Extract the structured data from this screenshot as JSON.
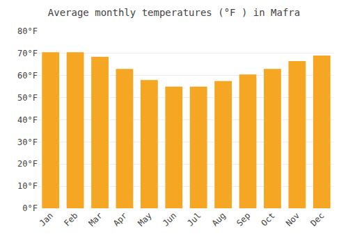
{
  "chart_data": {
    "type": "bar",
    "title": "Average monthly temperatures (°F ) in Mafra",
    "categories": [
      "Jan",
      "Feb",
      "Mar",
      "Apr",
      "May",
      "Jun",
      "Jul",
      "Aug",
      "Sep",
      "Oct",
      "Nov",
      "Dec"
    ],
    "values": [
      70.5,
      70.5,
      68.5,
      63.0,
      58.0,
      55.0,
      55.0,
      57.5,
      60.5,
      63.0,
      66.5,
      69.0
    ],
    "color": "#F5A623",
    "ylim": [
      0,
      80
    ],
    "yticks": [
      {
        "value": 0,
        "label": "0°F"
      },
      {
        "value": 10,
        "label": "10°F"
      },
      {
        "value": 20,
        "label": "20°F"
      },
      {
        "value": 30,
        "label": "30°F"
      },
      {
        "value": 40,
        "label": "40°F"
      },
      {
        "value": 50,
        "label": "50°F"
      },
      {
        "value": 60,
        "label": "60°F"
      },
      {
        "value": 70,
        "label": "70°F"
      },
      {
        "value": 80,
        "label": "80°F"
      }
    ],
    "grid": true
  }
}
